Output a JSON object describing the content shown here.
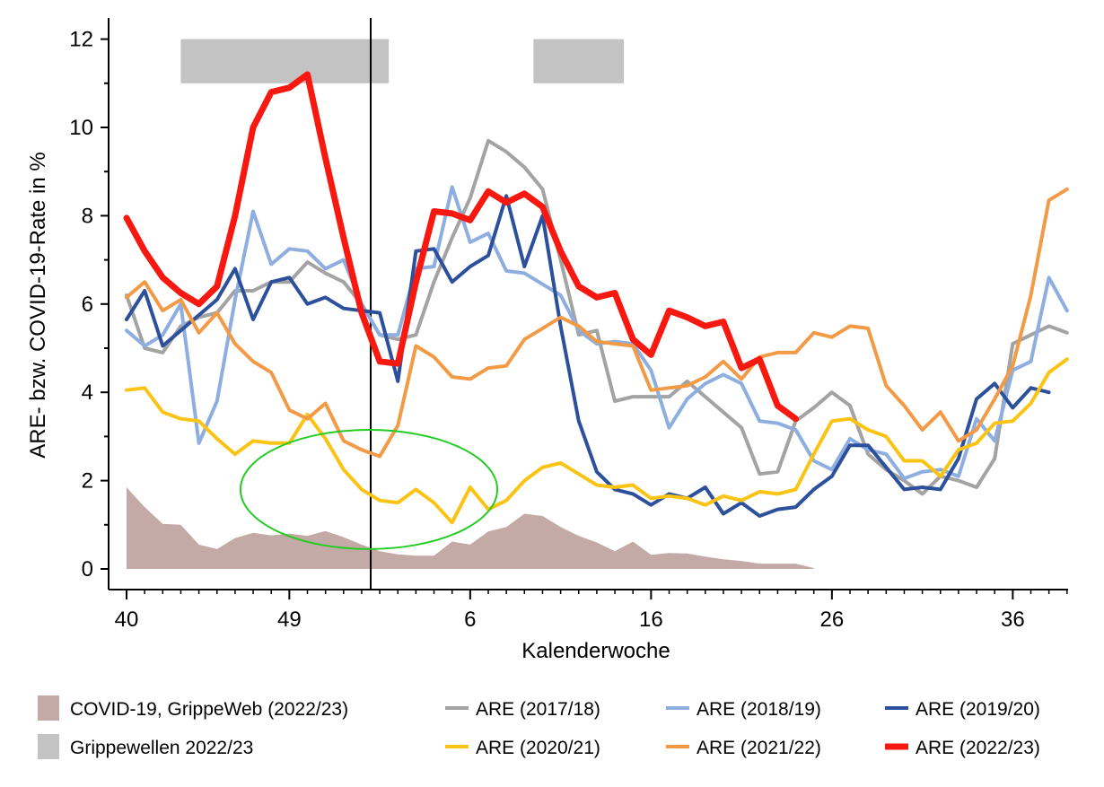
{
  "chart_data": {
    "type": "line",
    "xlabel": "Kalenderwoche",
    "ylabel": "ARE- bzw. COVID-19-Rate in %",
    "x_index_range": [
      0,
      53
    ],
    "ylim": [
      0,
      12.5
    ],
    "x_ticks": [
      {
        "index": 0,
        "label": "40"
      },
      {
        "index": 9,
        "label": "49"
      },
      {
        "index": 19,
        "label": "6"
      },
      {
        "index": 29,
        "label": "16"
      },
      {
        "index": 39,
        "label": "26"
      },
      {
        "index": 49,
        "label": "36"
      }
    ],
    "y_ticks": [
      {
        "value": 0,
        "label": "0"
      },
      {
        "value": 2,
        "label": "2"
      },
      {
        "value": 4,
        "label": "4"
      },
      {
        "value": 6,
        "label": "6"
      },
      {
        "value": 8,
        "label": "8"
      },
      {
        "value": 10,
        "label": "10"
      },
      {
        "value": 12,
        "label": "12"
      }
    ],
    "year_boundary_index": 13.5,
    "flu_waves": [
      {
        "from": 3,
        "to": 14.5,
        "ymin": 11,
        "ymax": 12
      },
      {
        "from": 22.5,
        "to": 27.5,
        "ymin": 11,
        "ymax": 12
      }
    ],
    "highlight_ellipse": {
      "cx": 13.4,
      "cy": 1.8,
      "rx": 7.1,
      "ry": 1.35,
      "color": "#22cc22"
    },
    "covid_area": {
      "name": "COVID-19, GrippeWeb (2022/23)",
      "color": "#c4aaa7",
      "values": [
        1.85,
        1.4,
        1.02,
        1.0,
        0.55,
        0.45,
        0.7,
        0.82,
        0.76,
        0.8,
        0.75,
        0.86,
        0.72,
        0.55,
        0.4,
        0.33,
        0.3,
        0.3,
        0.62,
        0.55,
        0.85,
        0.95,
        1.25,
        1.2,
        0.95,
        0.75,
        0.6,
        0.4,
        0.62,
        0.32,
        0.36,
        0.35,
        0.28,
        0.22,
        0.18,
        0.12,
        0.12,
        0.12,
        0.02
      ]
    },
    "series": [
      {
        "name": "ARE (2017/18)",
        "color": "#a3a3a3",
        "width": 4,
        "values": [
          6.2,
          5.0,
          4.9,
          5.5,
          5.7,
          5.8,
          6.3,
          6.3,
          6.5,
          6.5,
          6.95,
          6.7,
          6.5,
          6.0,
          5.3,
          5.2,
          5.3,
          6.5,
          7.5,
          8.4,
          9.7,
          9.45,
          9.1,
          8.6,
          7.0,
          5.3,
          5.4,
          3.8,
          3.9,
          3.9,
          3.9,
          4.25,
          3.9,
          3.55,
          3.2,
          2.15,
          2.2,
          3.35,
          3.65,
          4.0,
          3.7,
          2.6,
          2.25,
          2.0,
          1.7,
          2.1,
          2.0,
          1.85,
          2.5,
          5.1,
          5.3,
          5.5,
          5.35
        ]
      },
      {
        "name": "ARE (2018/19)",
        "color": "#8eaee0",
        "width": 4,
        "values": [
          5.4,
          5.05,
          5.3,
          6.0,
          2.85,
          3.8,
          6.1,
          8.1,
          6.9,
          7.25,
          7.2,
          6.8,
          7.0,
          6.0,
          5.3,
          5.3,
          6.8,
          6.85,
          8.65,
          7.4,
          7.6,
          6.75,
          6.7,
          6.45,
          6.2,
          5.4,
          5.1,
          5.15,
          5.1,
          4.5,
          3.2,
          3.85,
          4.2,
          4.4,
          4.2,
          3.35,
          3.3,
          3.15,
          2.45,
          2.25,
          2.95,
          2.7,
          2.6,
          2.05,
          2.2,
          2.25,
          2.1,
          3.4,
          2.9,
          4.5,
          4.7,
          6.6,
          5.85
        ]
      },
      {
        "name": "ARE (2019/20)",
        "color": "#2d509c",
        "width": 4,
        "values": [
          5.65,
          6.3,
          5.05,
          5.4,
          5.75,
          6.1,
          6.8,
          5.65,
          6.5,
          6.6,
          6.0,
          6.15,
          5.9,
          5.85,
          5.8,
          4.25,
          7.2,
          7.25,
          6.5,
          6.85,
          7.1,
          8.45,
          6.85,
          8.0,
          5.5,
          3.35,
          2.2,
          1.8,
          1.7,
          1.45,
          1.7,
          1.6,
          1.85,
          1.25,
          1.5,
          1.2,
          1.35,
          1.4,
          1.8,
          2.1,
          2.8,
          2.8,
          2.3,
          1.8,
          1.85,
          1.8,
          2.5,
          3.85,
          4.2,
          3.65,
          4.1,
          4.0
        ]
      },
      {
        "name": "ARE (2020/21)",
        "color": "#fbc313",
        "width": 4,
        "values": [
          4.05,
          4.1,
          3.55,
          3.4,
          3.35,
          2.95,
          2.6,
          2.9,
          2.85,
          2.85,
          3.5,
          2.95,
          2.25,
          1.8,
          1.55,
          1.5,
          1.8,
          1.5,
          1.05,
          1.85,
          1.35,
          1.55,
          2.0,
          2.3,
          2.4,
          2.15,
          1.9,
          1.85,
          1.9,
          1.6,
          1.65,
          1.6,
          1.45,
          1.65,
          1.55,
          1.75,
          1.7,
          1.8,
          2.6,
          3.35,
          3.4,
          3.15,
          3.0,
          2.45,
          2.45,
          2.1,
          2.7,
          2.85,
          3.3,
          3.35,
          3.75,
          4.45,
          4.75
        ]
      },
      {
        "name": "ARE (2021/22)",
        "color": "#f39a46",
        "width": 4,
        "values": [
          6.15,
          6.5,
          5.85,
          6.1,
          5.35,
          5.8,
          5.1,
          4.7,
          4.45,
          3.6,
          3.4,
          3.75,
          2.9,
          2.7,
          2.55,
          3.25,
          5.05,
          4.8,
          4.35,
          4.3,
          4.55,
          4.6,
          5.2,
          5.45,
          5.7,
          5.5,
          5.15,
          5.1,
          5.05,
          4.05,
          4.1,
          4.15,
          4.35,
          4.7,
          4.3,
          4.8,
          4.9,
          4.9,
          5.35,
          5.25,
          5.5,
          5.45,
          4.15,
          3.7,
          3.15,
          3.55,
          2.9,
          3.15,
          3.85,
          4.6,
          6.2,
          8.35,
          8.6
        ]
      },
      {
        "name": "ARE (2022/23)",
        "color": "#f71910",
        "width": 7,
        "values": [
          7.95,
          7.2,
          6.6,
          6.25,
          6.0,
          6.4,
          8.0,
          10.0,
          10.8,
          10.9,
          11.2,
          9.3,
          7.5,
          5.8,
          4.7,
          4.65,
          6.5,
          8.1,
          8.05,
          7.9,
          8.55,
          8.3,
          8.5,
          8.2,
          7.2,
          6.4,
          6.15,
          6.25,
          5.2,
          4.85,
          5.85,
          5.7,
          5.5,
          5.6,
          4.55,
          4.75,
          3.7,
          3.4
        ]
      }
    ]
  },
  "legend": {
    "items": [
      {
        "key": "covid",
        "label": "COVID-19, GrippeWeb (2022/23)",
        "kind": "box",
        "color": "#c4aaa7"
      },
      {
        "key": "s1718",
        "label": "ARE (2017/18)",
        "kind": "line",
        "color": "#a3a3a3"
      },
      {
        "key": "s1819",
        "label": "ARE (2018/19)",
        "kind": "line",
        "color": "#8eaee0"
      },
      {
        "key": "s1920",
        "label": "ARE (2019/20)",
        "kind": "line",
        "color": "#2d509c"
      },
      {
        "key": "waves",
        "label": "Grippewellen 2022/23",
        "kind": "box",
        "color": "#c3c3c3"
      },
      {
        "key": "s2021",
        "label": "ARE (2020/21)",
        "kind": "line",
        "color": "#fbc313"
      },
      {
        "key": "s2122",
        "label": "ARE (2021/22)",
        "kind": "line",
        "color": "#f39a46"
      },
      {
        "key": "s2223",
        "label": "ARE (2022/23)",
        "kind": "line",
        "color": "#f71910"
      }
    ]
  }
}
